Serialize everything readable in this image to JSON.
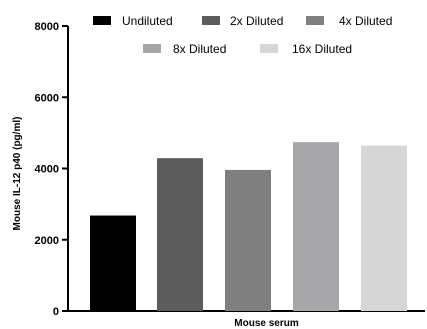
{
  "chart_data": {
    "type": "bar",
    "categories": [
      "Undiluted",
      "2x Diluted",
      "4x Diluted",
      "8x Diluted",
      "16x Diluted"
    ],
    "values": [
      2680,
      4290,
      3960,
      4740,
      4640
    ],
    "colors": [
      "#000000",
      "#5c5c5c",
      "#7f7f7f",
      "#a7a7a9",
      "#d6d6d6"
    ],
    "xlabel": "Mouse serum",
    "ylabel": "Mouse IL-12 p40 (pg/ml)",
    "ylim": [
      0,
      8000
    ],
    "yticks": [
      "0",
      "2000",
      "4000",
      "6000",
      "8000"
    ],
    "yticks_values": [
      0,
      2000,
      4000,
      6000,
      8000
    ],
    "legend_position": "top",
    "grid": false
  }
}
